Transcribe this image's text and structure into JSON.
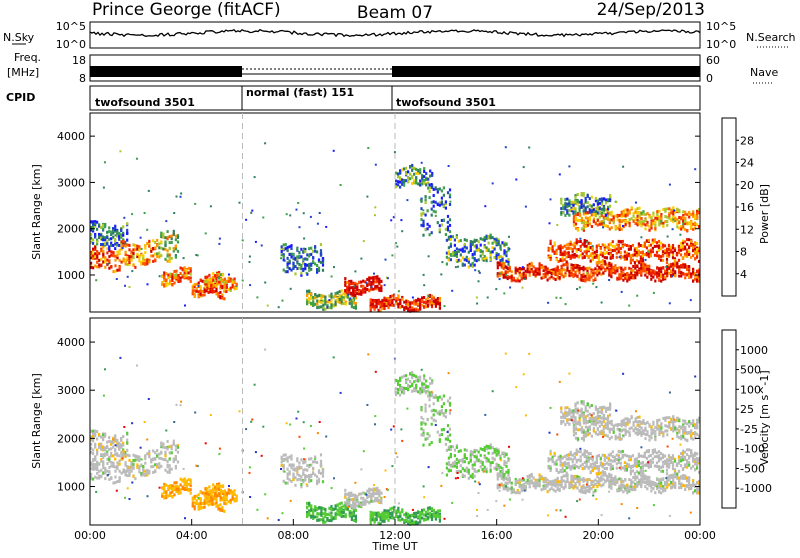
{
  "header": {
    "station": "Prince George (fitACF)",
    "beam": "Beam 07",
    "date": "24/Sep/2013"
  },
  "nsky_panel": {
    "label": "N.Sky",
    "right_label": "N.Search",
    "yticks_left": [
      "10^5",
      "10^0"
    ],
    "yticks_right": [
      "10^5",
      "10^0"
    ]
  },
  "freq_panel": {
    "label_line1": "Freq.",
    "label_line2": "[MHz]",
    "yticks_left": [
      "18",
      "8"
    ],
    "right_label": "Nave",
    "yticks_right": [
      "60",
      "0"
    ]
  },
  "cpid_panel": {
    "label": "CPID",
    "segments": [
      {
        "label": "twofsound 3501",
        "start_ut": 0,
        "end_ut": 6
      },
      {
        "label": "normal (fast) 151",
        "start_ut": 6,
        "end_ut": 12
      },
      {
        "label": "twofsound 3501",
        "start_ut": 12,
        "end_ut": 24
      }
    ]
  },
  "range_axis": {
    "ylabel": "Slant Range [km]",
    "yticks": [
      "1000",
      "2000",
      "3000",
      "4000"
    ]
  },
  "time_axis": {
    "xlabel": "Time UT",
    "xticks": [
      "00:00",
      "04:00",
      "08:00",
      "12:00",
      "16:00",
      "20:00",
      "00:00"
    ]
  },
  "power_colorbar": {
    "label": "Power [dB]",
    "ticks": [
      "4",
      "8",
      "12",
      "16",
      "20",
      "24",
      "28"
    ],
    "colors": [
      "#1a1aff",
      "#2244cc",
      "#2f7f5f",
      "#3fa04a",
      "#a8c830",
      "#ffcc00",
      "#ff9900",
      "#ff5500",
      "#ee2200",
      "#cc0000"
    ]
  },
  "velocity_colorbar": {
    "label": "Velocity [m s^-1]",
    "ticks": [
      "1000",
      "500",
      "100",
      "25",
      "-25",
      "-100",
      "-500",
      "-1000"
    ],
    "colors": [
      "#2233cc",
      "#336699",
      "#339955",
      "#55cc33",
      "#bbbbbb",
      "#ffbb00",
      "#ff8800",
      "#ff4400",
      "#ee0000"
    ]
  },
  "chart_data": {
    "type": "heatmap",
    "title": "Prince George (fitACF) Beam 07 24/Sep/2013",
    "xlabel": "Time UT",
    "ylabel": "Slant Range [km]",
    "xlim": [
      0,
      24
    ],
    "ylim": [
      200,
      4500
    ],
    "panels": [
      "Power [dB]",
      "Velocity [m s^-1]"
    ],
    "scatter_bands_power": [
      {
        "t0": 0.0,
        "t1": 1.2,
        "r0": 1100,
        "r1": 1600,
        "power": 24
      },
      {
        "t0": 0.0,
        "t1": 1.5,
        "r0": 1600,
        "r1": 2100,
        "power": 8
      },
      {
        "t0": 1.2,
        "t1": 2.6,
        "r0": 1200,
        "r1": 1700,
        "power": 22
      },
      {
        "t0": 2.6,
        "t1": 3.5,
        "r0": 1300,
        "r1": 2000,
        "power": 16
      },
      {
        "t0": 2.8,
        "t1": 4.0,
        "r0": 800,
        "r1": 1100,
        "power": 22
      },
      {
        "t0": 4.0,
        "t1": 5.4,
        "r0": 500,
        "r1": 900,
        "power": 24
      },
      {
        "t0": 4.5,
        "t1": 5.8,
        "r0": 700,
        "r1": 1000,
        "power": 20
      },
      {
        "t0": 7.5,
        "t1": 9.2,
        "r0": 1000,
        "r1": 1600,
        "power": 8
      },
      {
        "t0": 8.5,
        "t1": 10.5,
        "r0": 300,
        "r1": 600,
        "power": 14
      },
      {
        "t0": 10.0,
        "t1": 11.5,
        "r0": 600,
        "r1": 900,
        "power": 28
      },
      {
        "t0": 11.0,
        "t1": 13.8,
        "r0": 250,
        "r1": 500,
        "power": 26
      },
      {
        "t0": 12.0,
        "t1": 13.5,
        "r0": 2900,
        "r1": 3300,
        "power": 10
      },
      {
        "t0": 13.0,
        "t1": 14.2,
        "r0": 1800,
        "r1": 2900,
        "power": 8
      },
      {
        "t0": 14.0,
        "t1": 16.5,
        "r0": 1200,
        "r1": 1800,
        "power": 10
      },
      {
        "t0": 16.0,
        "t1": 24.0,
        "r0": 900,
        "r1": 1200,
        "power": 26
      },
      {
        "t0": 18.0,
        "t1": 24.0,
        "r0": 1300,
        "r1": 1700,
        "power": 24
      },
      {
        "t0": 19.0,
        "t1": 24.0,
        "r0": 2000,
        "r1": 2400,
        "power": 20
      },
      {
        "t0": 18.5,
        "t1": 20.5,
        "r0": 2300,
        "r1": 2700,
        "power": 10
      }
    ]
  }
}
